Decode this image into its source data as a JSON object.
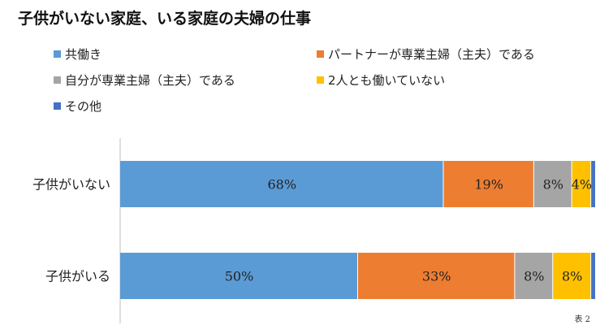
{
  "chart_data": {
    "type": "bar",
    "orientation": "horizontal",
    "stacked": true,
    "title": "子供がいない家庭、いる家庭の夫婦の仕事",
    "categories": [
      "子供がいない",
      "子供がいる"
    ],
    "series": [
      {
        "name": "共働き",
        "color": "#5b9bd5",
        "values": [
          68,
          50
        ],
        "labels": [
          "68%",
          "50%"
        ]
      },
      {
        "name": "パートナーが専業主婦（主夫）である",
        "color": "#ed7d31",
        "values": [
          19,
          33
        ],
        "labels": [
          "19%",
          "33%"
        ]
      },
      {
        "name": "自分が専業主婦（主夫）である",
        "color": "#a5a5a5",
        "values": [
          8,
          8
        ],
        "labels": [
          "8%",
          "8%"
        ]
      },
      {
        "name": "2人とも働いていない",
        "color": "#ffc000",
        "values": [
          4,
          8
        ],
        "labels": [
          "4%",
          "8%"
        ]
      },
      {
        "name": "その他",
        "color": "#4472c4",
        "values": [
          1,
          1
        ],
        "labels": [
          "",
          ""
        ]
      }
    ],
    "xlim": [
      0,
      100
    ],
    "legend": "top",
    "grid": false,
    "caption": "表 2"
  }
}
